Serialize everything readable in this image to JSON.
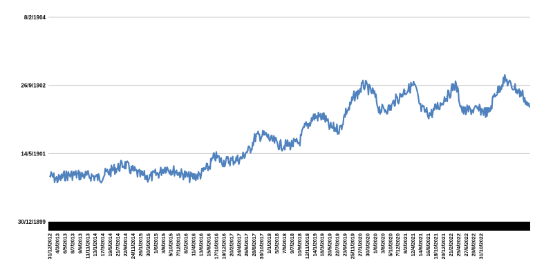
{
  "chart_data": {
    "type": "line",
    "title": "",
    "xlabel": "",
    "ylabel": "",
    "grid": true,
    "legend": "none",
    "y_ticks": [
      "30/12/1899",
      "14/5/1901",
      "26/9/1902",
      "8/2/1904"
    ],
    "ylim": [
      0,
      1500
    ],
    "x_ticks": [
      "31/12/2012",
      "4/3/2013",
      "6/5/2013",
      "8/7/2013",
      "9/9/2013",
      "11/11/2013",
      "13/1/2014",
      "17/3/2014",
      "19/5/2014",
      "21/7/2014",
      "22/9/2014",
      "24/11/2014",
      "26/1/2015",
      "30/3/2015",
      "1/6/2015",
      "3/8/2015",
      "5/10/2015",
      "7/12/2015",
      "8/2/2016",
      "11/4/2016",
      "13/6/2016",
      "15/8/2016",
      "17/10/2016",
      "19/12/2016",
      "20/2/2017",
      "24/4/2017",
      "26/6/2017",
      "28/8/2017",
      "30/10/2017",
      "1/1/2018",
      "5/3/2018",
      "7/5/2018",
      "9/7/2018",
      "10/9/2018",
      "12/11/2018",
      "14/1/2019",
      "18/3/2019",
      "20/5/2019",
      "22/7/2019",
      "23/9/2019",
      "25/11/2019",
      "27/1/2020",
      "30/3/2020",
      "1/6/2020",
      "3/8/2020",
      "5/10/2020",
      "7/12/2020",
      "8/2/2021",
      "12/4/2021",
      "14/6/2021",
      "16/8/2021",
      "18/10/2021",
      "20/12/2021",
      "21/2/2022",
      "25/4/2022",
      "27/6/2022",
      "29/8/2022",
      "31/10/2022"
    ],
    "series": [
      {
        "color": "#4f81bd",
        "x": [
          "31/12/2012",
          "4/3/2013",
          "6/5/2013",
          "8/7/2013",
          "9/9/2013",
          "11/11/2013",
          "13/1/2014",
          "17/3/2014",
          "19/5/2014",
          "21/7/2014",
          "22/9/2014",
          "24/11/2014",
          "26/1/2015",
          "30/3/2015",
          "1/6/2015",
          "3/8/2015",
          "5/10/2015",
          "7/12/2015",
          "8/2/2016",
          "11/4/2016",
          "13/6/2016",
          "15/8/2016",
          "17/10/2016",
          "19/12/2016",
          "20/2/2017",
          "24/4/2017",
          "26/6/2017",
          "28/8/2017",
          "30/10/2017",
          "1/1/2018",
          "5/3/2018",
          "7/5/2018",
          "9/7/2018",
          "10/9/2018",
          "12/11/2018",
          "14/1/2019",
          "18/3/2019",
          "20/5/2019",
          "22/7/2019",
          "23/9/2019",
          "25/11/2019",
          "27/1/2020",
          "30/3/2020",
          "1/6/2020",
          "3/8/2020",
          "5/10/2020",
          "7/12/2020",
          "8/2/2021",
          "12/4/2021",
          "14/6/2021",
          "16/8/2021",
          "18/10/2021",
          "20/12/2021",
          "21/2/2022",
          "25/4/2022",
          "27/6/2022",
          "29/8/2022",
          "31/10/2022",
          "28/12/2022"
        ],
        "values": [
          335,
          310,
          340,
          345,
          340,
          335,
          320,
          360,
          390,
          420,
          375,
          340,
          325,
          350,
          395,
          375,
          350,
          325,
          340,
          390,
          475,
          440,
          450,
          460,
          520,
          625,
          635,
          590,
          560,
          565,
          575,
          700,
          770,
          770,
          690,
          680,
          820,
          930,
          1000,
          950,
          820,
          830,
          900,
          960,
          1000,
          820,
          790,
          850,
          920,
          1000,
          810,
          820,
          820,
          800,
          950,
          1040,
          990,
          940,
          840
        ]
      }
    ]
  }
}
